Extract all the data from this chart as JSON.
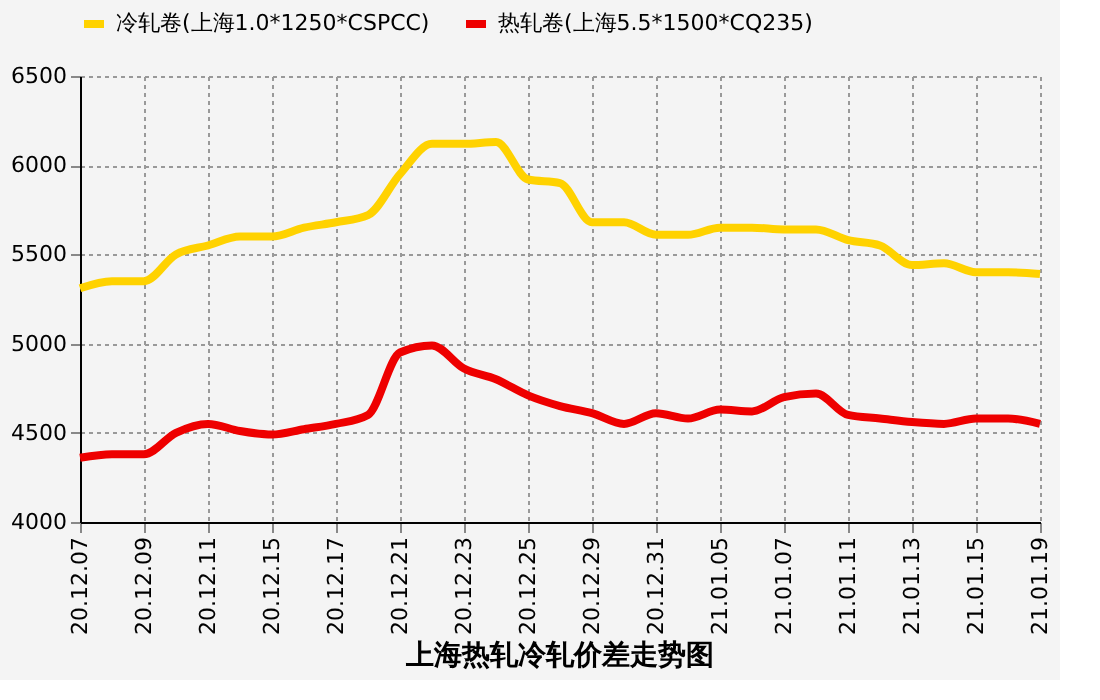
{
  "chart_data": {
    "type": "line",
    "title": "上海热轧冷轧价差走势图",
    "categories": [
      "20.12.07",
      null,
      "20.12.09",
      null,
      "20.12.11",
      null,
      "20.12.15",
      null,
      "20.12.17",
      null,
      "20.12.21",
      null,
      "20.12.23",
      null,
      "20.12.25",
      null,
      "20.12.29",
      null,
      "20.12.31",
      null,
      "21.01.05",
      null,
      "21.01.07",
      null,
      "21.01.11",
      null,
      "21.01.13",
      null,
      "21.01.15",
      null,
      "21.01.19"
    ],
    "series": [
      {
        "name": "冷轧卷(上海1.0*1250*CSPCC)",
        "color": "#ffd200",
        "values": [
          5310,
          5350,
          5350,
          5500,
          5550,
          5600,
          5600,
          5650,
          5680,
          5720,
          5950,
          6120,
          6120,
          6130,
          5920,
          5900,
          5680,
          5680,
          5610,
          5610,
          5650,
          5650,
          5640,
          5640,
          5580,
          5550,
          5440,
          5450,
          5400,
          5400,
          5390
        ]
      },
      {
        "name": "热轧卷(上海5.5*1500*CQ235)",
        "color": "#ee0000",
        "values": [
          4360,
          4380,
          4380,
          4500,
          4550,
          4510,
          4490,
          4520,
          4550,
          4600,
          4950,
          4990,
          4860,
          4800,
          4710,
          4650,
          4610,
          4550,
          4610,
          4580,
          4630,
          4620,
          4700,
          4720,
          4600,
          4580,
          4560,
          4550,
          4580,
          4580,
          4550
        ]
      }
    ],
    "ylim": [
      4000,
      6500
    ],
    "yticks": [
      4000,
      4500,
      5000,
      5500,
      6000,
      6500
    ],
    "grid": true,
    "legend": "top",
    "marker": "none",
    "line_style": "solid"
  }
}
